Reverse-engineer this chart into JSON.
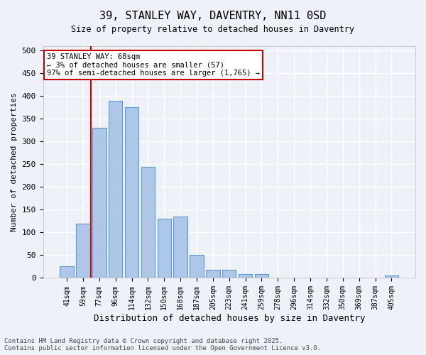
{
  "title_line1": "39, STANLEY WAY, DAVENTRY, NN11 0SD",
  "title_line2": "Size of property relative to detached houses in Daventry",
  "xlabel": "Distribution of detached houses by size in Daventry",
  "ylabel": "Number of detached properties",
  "bar_labels": [
    "41sqm",
    "59sqm",
    "77sqm",
    "96sqm",
    "114sqm",
    "132sqm",
    "150sqm",
    "168sqm",
    "187sqm",
    "205sqm",
    "223sqm",
    "241sqm",
    "259sqm",
    "278sqm",
    "296sqm",
    "314sqm",
    "332sqm",
    "350sqm",
    "369sqm",
    "387sqm",
    "405sqm"
  ],
  "bar_values": [
    25,
    120,
    330,
    390,
    375,
    245,
    130,
    135,
    50,
    18,
    18,
    8,
    8,
    0,
    0,
    0,
    0,
    0,
    0,
    0,
    5
  ],
  "bar_color": "#aec6e8",
  "bar_edgecolor": "#5b9bd5",
  "vline_x": 1.5,
  "vline_color": "#cc0000",
  "ylim": [
    0,
    510
  ],
  "yticks": [
    0,
    50,
    100,
    150,
    200,
    250,
    300,
    350,
    400,
    450,
    500
  ],
  "annotation_text": "39 STANLEY WAY: 68sqm\n← 3% of detached houses are smaller (57)\n97% of semi-detached houses are larger (1,765) →",
  "annotation_box_color": "#ffffff",
  "annotation_box_edgecolor": "#cc0000",
  "footer_line1": "Contains HM Land Registry data © Crown copyright and database right 2025.",
  "footer_line2": "Contains public sector information licensed under the Open Government Licence v3.0.",
  "bg_color": "#eef2f8",
  "grid_color": "#ffffff"
}
